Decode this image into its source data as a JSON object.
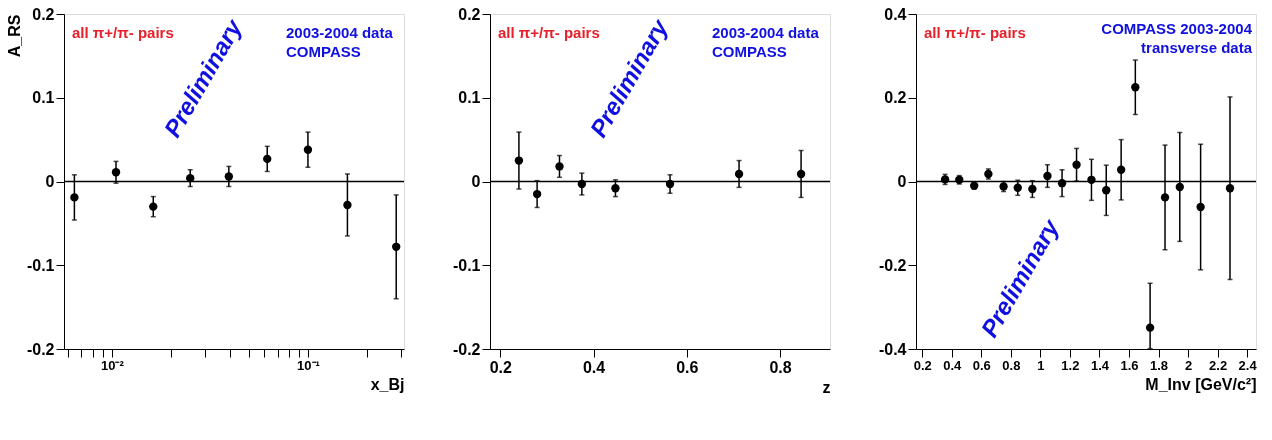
{
  "chart_data": [
    {
      "type": "scatter",
      "ylabel": "A_RS",
      "xlabel": "x_Bj",
      "log": "x",
      "marker": "circle",
      "grid": false,
      "legend": false,
      "annotations": [
        "all π+/π- pairs",
        "2003-2004 data",
        "COMPASS",
        "Preliminary"
      ],
      "x": [
        0.00644,
        0.0105,
        0.01626,
        0.0251,
        0.0395,
        0.062,
        0.1,
        0.159,
        0.282
      ],
      "series": [
        {
          "color": "#000000",
          "values": [
            -0.019,
            0.011,
            -0.03,
            0.004,
            0.006,
            0.027,
            0.038,
            -0.028,
            -0.078
          ],
          "errors": [
            0.027,
            0.013,
            0.012,
            0.01,
            0.012,
            0.015,
            0.021,
            0.037,
            0.062
          ]
        }
      ],
      "xlim": [
        0.0057,
        0.309
      ],
      "xticks": [
        {
          "value": 0.006,
          "label": null
        },
        {
          "value": 0.007,
          "label": null
        },
        {
          "value": 0.008,
          "label": null
        },
        {
          "value": 0.009,
          "label": null
        },
        {
          "value": 0.01,
          "label": "10⁻²"
        },
        {
          "value": 0.02,
          "label": null
        },
        {
          "value": 0.03,
          "label": null
        },
        {
          "value": 0.04,
          "label": null
        },
        {
          "value": 0.05,
          "label": null
        },
        {
          "value": 0.06,
          "label": null
        },
        {
          "value": 0.07,
          "label": null
        },
        {
          "value": 0.08,
          "label": null
        },
        {
          "value": 0.09,
          "label": null
        },
        {
          "value": 0.1,
          "label": "10⁻¹"
        },
        {
          "value": 0.2,
          "label": null
        },
        {
          "value": 0.3,
          "label": null
        }
      ],
      "ylim": [
        -0.2,
        0.2
      ],
      "yticks": [
        -0.2,
        -0.1,
        0,
        0.1,
        0.2
      ],
      "ref_lines": [
        {
          "axis": "y",
          "value": 0,
          "color": "#000000"
        }
      ]
    },
    {
      "type": "scatter",
      "xlabel": "z",
      "marker": "circle",
      "grid": false,
      "legend": false,
      "annotations": [
        "all π+/π- pairs",
        "2003-2004 data",
        "COMPASS",
        "Preliminary"
      ],
      "x": [
        0.24,
        0.279,
        0.327,
        0.375,
        0.447,
        0.564,
        0.712,
        0.845
      ],
      "series": [
        {
          "color": "#000000",
          "values": [
            0.025,
            -0.015,
            0.018,
            -0.003,
            -0.008,
            -0.003,
            0.009,
            0.009
          ],
          "errors": [
            0.034,
            0.016,
            0.013,
            0.013,
            0.01,
            0.011,
            0.016,
            0.028
          ]
        }
      ],
      "xlim": [
        0.178,
        0.907
      ],
      "xticks": [
        0.2,
        0.4,
        0.6,
        0.8
      ],
      "ylim": [
        -0.2,
        0.2
      ],
      "yticks": [
        -0.2,
        -0.1,
        0,
        0.1,
        0.2
      ],
      "ref_lines": [
        {
          "axis": "y",
          "value": 0,
          "color": "#000000"
        }
      ]
    },
    {
      "type": "scatter",
      "xlabel": "M_Inv [GeV/c²]",
      "marker": "circle",
      "grid": false,
      "legend": false,
      "annotations": [
        "all π+/π- pairs",
        "COMPASS 2003-2004",
        "transverse data",
        "Preliminary"
      ],
      "x": [
        0.355,
        0.451,
        0.552,
        0.648,
        0.751,
        0.847,
        0.946,
        1.048,
        1.147,
        1.245,
        1.346,
        1.446,
        1.547,
        1.643,
        1.743,
        1.844,
        1.944,
        2.085,
        2.284
      ],
      "series": [
        {
          "color": "#000000",
          "values": [
            0.005,
            0.004,
            -0.01,
            0.018,
            -0.012,
            -0.015,
            -0.018,
            0.013,
            -0.004,
            0.04,
            0.004,
            -0.021,
            0.028,
            0.225,
            -0.349,
            -0.038,
            -0.013,
            -0.061,
            -0.016
          ],
          "errors": [
            0.012,
            0.01,
            0.008,
            0.012,
            0.012,
            0.018,
            0.02,
            0.027,
            0.032,
            0.039,
            0.049,
            0.06,
            0.072,
            0.065,
            [
              -0.399,
              -0.243
            ],
            0.125,
            0.13,
            0.15,
            0.218
          ]
        }
      ],
      "xlim": [
        0.158,
        2.46
      ],
      "xticks": [
        0.2,
        0.4,
        0.6,
        0.8,
        1,
        1.2,
        1.4,
        1.6,
        1.8,
        2,
        2.2,
        2.4
      ],
      "ylim": [
        -0.4,
        0.4
      ],
      "yticks": [
        -0.4,
        -0.2,
        0,
        0.2,
        0.4
      ],
      "ref_lines": [
        {
          "axis": "y",
          "value": 0,
          "color": "#000000"
        }
      ]
    }
  ]
}
